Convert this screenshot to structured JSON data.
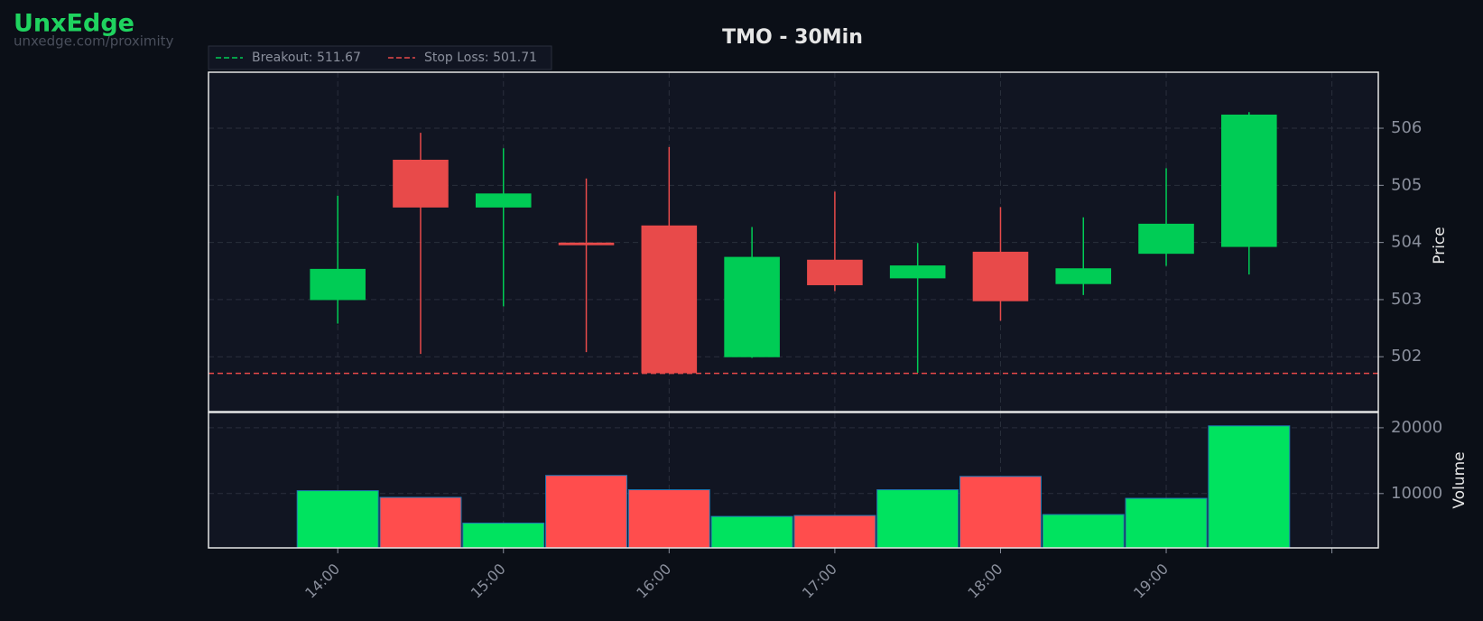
{
  "header": {
    "brand": "UnxEdge",
    "url": "unxedge.com/proximity"
  },
  "chart_data": [
    {
      "type": "candlestick",
      "title": "TMO - 30Min",
      "ylabel": "Price",
      "x": [
        14,
        14.5,
        15,
        15.5,
        16,
        16.5,
        17,
        17.5,
        18,
        18.5,
        19,
        19.5
      ],
      "open": [
        503.0,
        505.44,
        504.62,
        503.99,
        504.29,
        502.0,
        503.69,
        503.38,
        503.83,
        503.28,
        503.81,
        503.93
      ],
      "high": [
        504.82,
        505.92,
        505.65,
        505.12,
        505.67,
        504.27,
        504.89,
        503.99,
        504.62,
        504.44,
        505.3,
        506.28
      ],
      "low": [
        502.58,
        502.05,
        502.88,
        502.08,
        501.72,
        501.98,
        503.15,
        501.72,
        502.63,
        503.08,
        503.59,
        503.44
      ],
      "close": [
        503.53,
        504.62,
        504.85,
        503.96,
        501.72,
        503.74,
        503.26,
        503.59,
        502.98,
        503.54,
        504.32,
        506.23
      ],
      "up_color": "#00cc55",
      "down_color": "#e84a4a",
      "ylim": [
        501.04,
        506.98
      ],
      "yticks": [
        502,
        503,
        504,
        505,
        506
      ],
      "grid": true,
      "hlines": [
        {
          "label": "Breakout: 511.67",
          "value": 511.67,
          "color": "#00cc55"
        },
        {
          "label": "Stop Loss: 501.71",
          "value": 501.71,
          "color": "#e84a4a"
        }
      ]
    },
    {
      "type": "bar",
      "ylabel": "Volume",
      "x": [
        14,
        14.5,
        15,
        15.5,
        16,
        16.5,
        17,
        17.5,
        18,
        18.5,
        19,
        19.5
      ],
      "values": [
        10435,
        9420,
        5507,
        12754,
        10580,
        6522,
        6667,
        10580,
        12609,
        6812,
        9275,
        20290
      ],
      "colors": [
        "#00e35f",
        "#ff4d4d",
        "#00e35f",
        "#ff4d4d",
        "#ff4d4d",
        "#00e35f",
        "#ff4d4d",
        "#00e35f",
        "#ff4d4d",
        "#00e35f",
        "#00e35f",
        "#00e35f"
      ],
      "ylim": [
        1740,
        22320
      ],
      "yticks": [
        10000,
        20000
      ],
      "grid": true,
      "xlim": [
        13.22,
        20.28
      ],
      "xticks": [
        {
          "value": 14,
          "label": "14:00"
        },
        {
          "value": 15,
          "label": "15:00"
        },
        {
          "value": 16,
          "label": "16:00"
        },
        {
          "value": 17,
          "label": "17:00"
        },
        {
          "value": 18,
          "label": "18:00"
        },
        {
          "value": 19,
          "label": "19:00"
        },
        {
          "value": 20,
          "label": null
        }
      ]
    }
  ]
}
